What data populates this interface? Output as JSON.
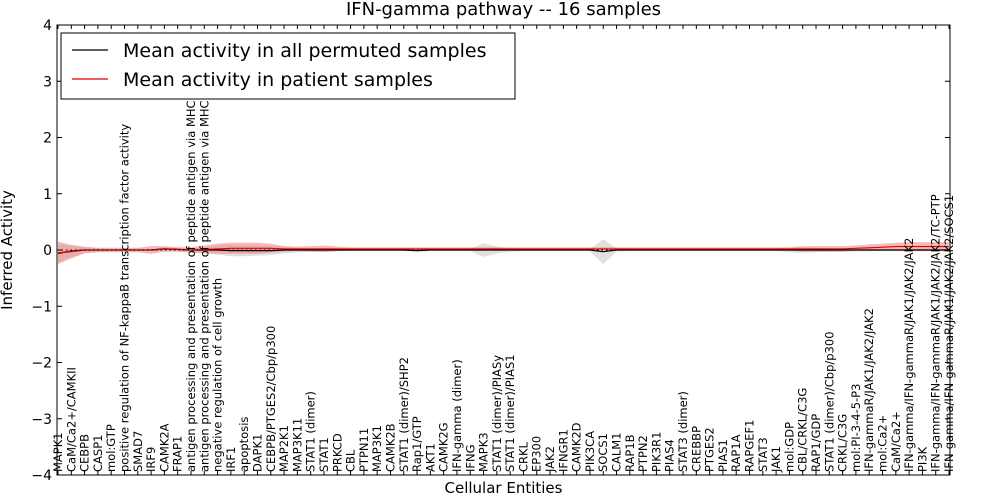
{
  "chart_data": {
    "type": "line",
    "title": "IFN-gamma pathway -- 16 samples",
    "xlabel": "Cellular Entities",
    "ylabel": "Inferred Activity",
    "ylim": [
      -4,
      4
    ],
    "yticks": [
      "4",
      "3",
      "2",
      "1",
      "0",
      "−1",
      "−2",
      "−3",
      "−4"
    ],
    "legend_position": "top-left",
    "categories": [
      "MAPK1",
      "CaM/Ca2+/CAMKII",
      "CEBPB",
      "CASP1",
      "mol:GTP",
      "positive regulation of NF-kappaB transcription factor activity",
      "SMAD7",
      "IRF9",
      "CAMK2A",
      "FRAP1",
      "antigen processing and presentation of peptide antigen via MHC class I",
      "antigen processing and presentation of peptide antigen via MHC class II",
      "negative regulation of cell growth",
      "IRF1",
      "apoptosis",
      "DAPK1",
      "CEBPB/PTGES2/Cbp/p300",
      "MAP2K1",
      "MAP3K11",
      "STAT1 (dimer)",
      "STAT1",
      "PRKCD",
      "CBL",
      "PTPN11",
      "MAP3K1",
      "CAMK2B",
      "STAT1 (dimer)/SHP2",
      "Rap1/GTP",
      "AKT1",
      "CAMK2G",
      "IFN-gamma (dimer)",
      "IFNG",
      "MAPK3",
      "STAT1 (dimer)/PIASy",
      "STAT1 (dimer)/PIAS1",
      "CRKL",
      "EP300",
      "JAK2",
      "IFNGR1",
      "CAMK2D",
      "PIK3CA",
      "SOCS1",
      "CALM1",
      "RAP1B",
      "PTPN2",
      "PIK3R1",
      "PIAS4",
      "STAT3 (dimer)",
      "CREBBP",
      "PTGES2",
      "PIAS1",
      "RAP1A",
      "RAPGEF1",
      "STAT3",
      "JAK1",
      "mol:GDP",
      "CBL/CRKL/C3G",
      "RAP1/GDP",
      "STAT1 (dimer)/Cbp/p300",
      "CRKL/C3G",
      "mol:PI-3-4-5-P3",
      "IFN-gammaR/JAK1/JAK2/JAK2",
      "mol:Ca2+",
      "CaM/Ca2+",
      "IFN-gamma/IFN-gammaR/JAK1/JAK2/JAK2",
      "PI3K",
      "IFN-gamma/IFN-gammaR/JAK1/JAK2/JAK2/TC-PTP",
      "IFN-gamma/IFN-gammaR/JAK1/JAK2/JAK2/SOCS1"
    ],
    "series": [
      {
        "name": "Mean activity in all permuted samples",
        "color": "#000000",
        "band_color": "#bbbbbb",
        "values": [
          -0.06,
          -0.02,
          0.0,
          0.0,
          0.0,
          0.0,
          0.0,
          0.0,
          0.02,
          0.01,
          0.0,
          0.0,
          0.0,
          -0.01,
          -0.01,
          -0.01,
          -0.01,
          0.0,
          0.0,
          0.0,
          0.0,
          0.0,
          0.0,
          0.0,
          0.0,
          0.0,
          0.0,
          -0.01,
          0.0,
          0.0,
          0.0,
          0.0,
          0.0,
          0.0,
          0.0,
          0.0,
          0.0,
          0.0,
          0.0,
          0.0,
          0.0,
          -0.03,
          0.0,
          0.0,
          0.0,
          0.0,
          0.0,
          0.0,
          0.0,
          0.0,
          0.0,
          0.0,
          0.0,
          0.0,
          0.0,
          0.0,
          0.0,
          0.0,
          0.0,
          0.0,
          0.0,
          0.0,
          0.0,
          0.0,
          0.0,
          0.0,
          0.0,
          0.0
        ],
        "spread": [
          0.16,
          0.1,
          0.05,
          0.03,
          0.02,
          0.02,
          0.02,
          0.02,
          0.03,
          0.03,
          0.03,
          0.05,
          0.08,
          0.1,
          0.1,
          0.09,
          0.08,
          0.06,
          0.04,
          0.03,
          0.03,
          0.02,
          0.02,
          0.02,
          0.02,
          0.02,
          0.02,
          0.02,
          0.02,
          0.02,
          0.02,
          0.02,
          0.12,
          0.06,
          0.03,
          0.02,
          0.02,
          0.02,
          0.02,
          0.02,
          0.02,
          0.22,
          0.03,
          0.02,
          0.02,
          0.02,
          0.02,
          0.02,
          0.02,
          0.02,
          0.02,
          0.02,
          0.02,
          0.02,
          0.02,
          0.04,
          0.05,
          0.04,
          0.03,
          0.03,
          0.02,
          0.02,
          0.02,
          0.02,
          0.02,
          0.02,
          0.02,
          0.02
        ]
      },
      {
        "name": "Mean activity in patient samples",
        "color": "#dd0000",
        "band_color": "#f08080",
        "values": [
          -0.05,
          -0.03,
          0.0,
          0.0,
          0.0,
          0.0,
          0.0,
          0.0,
          0.02,
          0.01,
          0.0,
          0.01,
          0.02,
          0.03,
          0.03,
          0.03,
          0.03,
          0.02,
          0.02,
          0.02,
          0.02,
          0.02,
          0.02,
          0.02,
          0.02,
          0.02,
          0.02,
          0.02,
          0.02,
          0.02,
          0.02,
          0.02,
          0.02,
          0.02,
          0.02,
          0.02,
          0.02,
          0.02,
          0.02,
          0.02,
          0.02,
          0.02,
          0.02,
          0.02,
          0.02,
          0.02,
          0.02,
          0.02,
          0.02,
          0.02,
          0.02,
          0.02,
          0.02,
          0.02,
          0.02,
          0.02,
          0.02,
          0.02,
          0.02,
          0.02,
          0.03,
          0.04,
          0.05,
          0.06,
          0.06,
          0.06,
          0.06,
          0.06
        ],
        "spread": [
          0.2,
          0.12,
          0.06,
          0.04,
          0.04,
          0.04,
          0.04,
          0.07,
          0.05,
          0.04,
          0.05,
          0.07,
          0.09,
          0.1,
          0.1,
          0.1,
          0.08,
          0.05,
          0.04,
          0.05,
          0.06,
          0.04,
          0.03,
          0.03,
          0.03,
          0.03,
          0.03,
          0.03,
          0.03,
          0.03,
          0.03,
          0.03,
          0.03,
          0.03,
          0.03,
          0.03,
          0.03,
          0.03,
          0.03,
          0.03,
          0.03,
          0.03,
          0.03,
          0.03,
          0.03,
          0.03,
          0.03,
          0.03,
          0.03,
          0.03,
          0.03,
          0.03,
          0.03,
          0.03,
          0.03,
          0.03,
          0.05,
          0.05,
          0.05,
          0.05,
          0.05,
          0.06,
          0.06,
          0.07,
          0.08,
          0.08,
          0.08,
          0.08
        ]
      }
    ]
  }
}
